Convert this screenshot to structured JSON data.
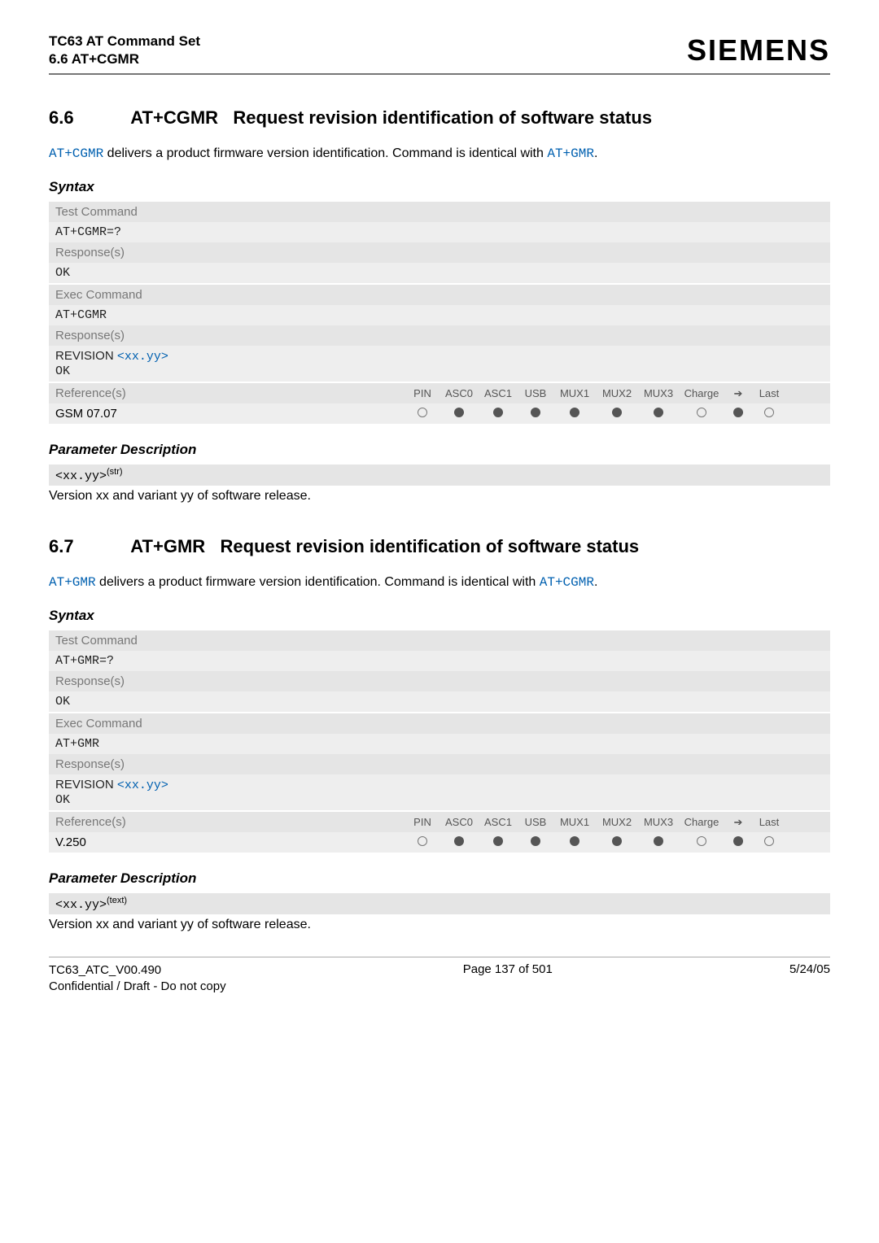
{
  "header": {
    "title_line1": "TC63 AT Command Set",
    "title_line2": "6.6 AT+CGMR",
    "brand": "SIEMENS"
  },
  "sections": [
    {
      "number": "6.6",
      "title_cmd": "AT+CGMR",
      "title_rest": "Request revision identification of software status",
      "intro_pre": " delivers a product firmware version identification. Command is identical with ",
      "intro_cmd1": "AT+CGMR",
      "intro_cmd2": "AT+GMR",
      "intro_post": ".",
      "syntax_label": "Syntax",
      "test_label": "Test Command",
      "test_cmd": "AT+CGMR=?",
      "resp_label": "Response(s)",
      "ok": "OK",
      "exec_label": "Exec Command",
      "exec_cmd": "AT+CGMR",
      "revision_word": "REVISION ",
      "revision_var": "<xx.yy>",
      "ref_label": "Reference(s)",
      "ref_value": "GSM 07.07",
      "cols": [
        "PIN",
        "ASC0",
        "ASC1",
        "USB",
        "MUX1",
        "MUX2",
        "MUX3",
        "Charge",
        "➔",
        "Last"
      ],
      "dots": [
        "empty",
        "fill",
        "fill",
        "fill",
        "fill",
        "fill",
        "fill",
        "empty",
        "fill",
        "empty"
      ],
      "param_head": "Parameter Description",
      "param_tag": "<xx.yy>",
      "param_sup": "(str)",
      "param_text": "Version xx and variant yy of software release."
    },
    {
      "number": "6.7",
      "title_cmd": "AT+GMR",
      "title_rest": "Request revision identification of software status",
      "intro_pre": " delivers a product firmware version identification. Command is identical with ",
      "intro_cmd1": "AT+GMR",
      "intro_cmd2": "AT+CGMR",
      "intro_post": ".",
      "syntax_label": "Syntax",
      "test_label": "Test Command",
      "test_cmd": "AT+GMR=?",
      "resp_label": "Response(s)",
      "ok": "OK",
      "exec_label": "Exec Command",
      "exec_cmd": "AT+GMR",
      "revision_word": "REVISION ",
      "revision_var": "<xx.yy>",
      "ref_label": "Reference(s)",
      "ref_value": "V.250",
      "cols": [
        "PIN",
        "ASC0",
        "ASC1",
        "USB",
        "MUX1",
        "MUX2",
        "MUX3",
        "Charge",
        "➔",
        "Last"
      ],
      "dots": [
        "empty",
        "fill",
        "fill",
        "fill",
        "fill",
        "fill",
        "fill",
        "empty",
        "fill",
        "empty"
      ],
      "param_head": "Parameter Description",
      "param_tag": "<xx.yy>",
      "param_sup": "(text)",
      "param_text": "Version xx and variant yy of software release."
    }
  ],
  "footer": {
    "left_line1": "TC63_ATC_V00.490",
    "left_line2": "Confidential / Draft - Do not copy",
    "center": "Page 137 of 501",
    "right": "5/24/05"
  },
  "colors": {
    "link": "#0060b0",
    "row_label_bg": "#e5e5e5",
    "row_body_bg": "#eeeeee"
  }
}
